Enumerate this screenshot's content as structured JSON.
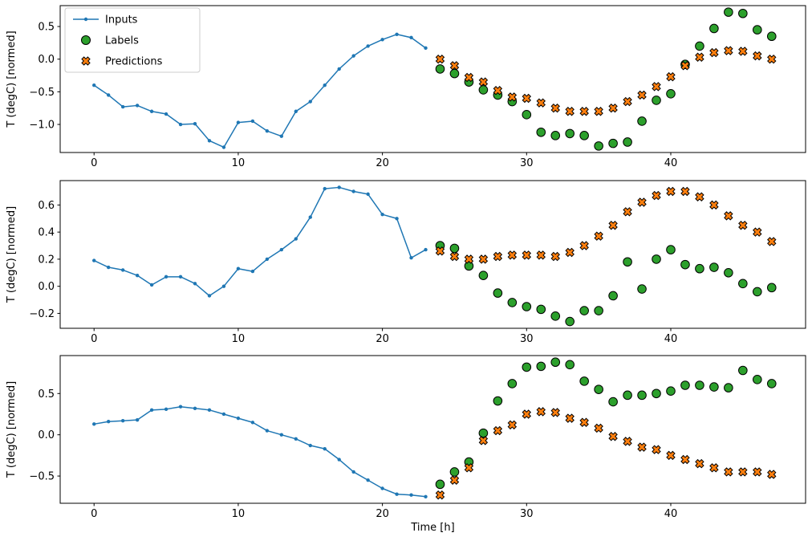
{
  "figure": {
    "background": "#ffffff",
    "axis_color": "#000000",
    "xlabel": "Time [h]",
    "ylabel": "T (degC) [normed]",
    "legend": {
      "position": "upper left",
      "border_color": "#cccccc",
      "entries": [
        {
          "label": "Inputs",
          "marker": "line-dot",
          "color": "#1f77b4"
        },
        {
          "label": "Labels",
          "marker": "circle",
          "color": "#2ca02c"
        },
        {
          "label": "Predictions",
          "marker": "x",
          "color": "#ff7f0e"
        }
      ]
    }
  },
  "chart_data": [
    {
      "type": "line",
      "title": "",
      "xlabel": "",
      "ylabel": "T (degC) [normed]",
      "xlim": [
        -2.35,
        49.35
      ],
      "ylim": [
        -1.43,
        0.82
      ],
      "xticks": [
        0,
        10,
        20,
        30,
        40
      ],
      "yticks": [
        0.5,
        0.0,
        -0.5,
        -1.0
      ],
      "grid": false,
      "series": [
        {
          "name": "Inputs",
          "type": "line+marker",
          "color": "#1f77b4",
          "x": [
            0,
            1,
            2,
            3,
            4,
            5,
            6,
            7,
            8,
            9,
            10,
            11,
            12,
            13,
            14,
            15,
            16,
            17,
            18,
            19,
            20,
            21,
            22,
            23
          ],
          "y": [
            -0.4,
            -0.55,
            -0.73,
            -0.71,
            -0.8,
            -0.84,
            -1.0,
            -0.99,
            -1.25,
            -1.35,
            -0.97,
            -0.95,
            -1.1,
            -1.18,
            -0.8,
            -0.65,
            -0.4,
            -0.15,
            0.05,
            0.2,
            0.3,
            0.38,
            0.33,
            0.17
          ]
        },
        {
          "name": "Labels",
          "type": "scatter",
          "marker": "circle",
          "color": "#2ca02c",
          "x": [
            24,
            25,
            26,
            27,
            28,
            29,
            30,
            31,
            32,
            33,
            34,
            35,
            36,
            37,
            38,
            39,
            40,
            41,
            42,
            43,
            44,
            45,
            46,
            47
          ],
          "y": [
            -0.15,
            -0.22,
            -0.35,
            -0.47,
            -0.55,
            -0.65,
            -0.85,
            -1.12,
            -1.17,
            -1.14,
            -1.17,
            -1.33,
            -1.29,
            -1.27,
            -0.95,
            -0.63,
            -0.53,
            -0.08,
            0.2,
            0.47,
            0.72,
            0.7,
            0.45,
            0.35
          ]
        },
        {
          "name": "Predictions",
          "type": "scatter",
          "marker": "x",
          "color": "#ff7f0e",
          "x": [
            24,
            25,
            26,
            27,
            28,
            29,
            30,
            31,
            32,
            33,
            34,
            35,
            36,
            37,
            38,
            39,
            40,
            41,
            42,
            43,
            44,
            45,
            46,
            47
          ],
          "y": [
            0.0,
            -0.1,
            -0.28,
            -0.35,
            -0.48,
            -0.58,
            -0.6,
            -0.67,
            -0.75,
            -0.8,
            -0.8,
            -0.8,
            -0.75,
            -0.65,
            -0.55,
            -0.42,
            -0.27,
            -0.1,
            0.03,
            0.1,
            0.13,
            0.12,
            0.05,
            0.0
          ]
        }
      ]
    },
    {
      "type": "line",
      "title": "",
      "xlabel": "",
      "ylabel": "T (degC) [normed]",
      "xlim": [
        -2.35,
        49.35
      ],
      "ylim": [
        -0.31,
        0.78
      ],
      "xticks": [
        0,
        10,
        20,
        30,
        40
      ],
      "yticks": [
        0.6,
        0.4,
        0.2,
        0.0,
        -0.2
      ],
      "grid": false,
      "series": [
        {
          "name": "Inputs",
          "type": "line+marker",
          "color": "#1f77b4",
          "x": [
            0,
            1,
            2,
            3,
            4,
            5,
            6,
            7,
            8,
            9,
            10,
            11,
            12,
            13,
            14,
            15,
            16,
            17,
            18,
            19,
            20,
            21,
            22,
            23
          ],
          "y": [
            0.19,
            0.14,
            0.12,
            0.08,
            0.01,
            0.07,
            0.07,
            0.02,
            -0.07,
            0.0,
            0.13,
            0.11,
            0.2,
            0.27,
            0.35,
            0.51,
            0.72,
            0.73,
            0.7,
            0.68,
            0.53,
            0.5,
            0.21,
            0.27
          ]
        },
        {
          "name": "Labels",
          "type": "scatter",
          "marker": "circle",
          "color": "#2ca02c",
          "x": [
            24,
            25,
            26,
            27,
            28,
            29,
            30,
            31,
            32,
            33,
            34,
            35,
            36,
            37,
            38,
            39,
            40,
            41,
            42,
            43,
            44,
            45,
            46,
            47
          ],
          "y": [
            0.3,
            0.28,
            0.15,
            0.08,
            -0.05,
            -0.12,
            -0.15,
            -0.17,
            -0.22,
            -0.26,
            -0.18,
            -0.18,
            -0.07,
            0.18,
            -0.02,
            0.2,
            0.27,
            0.16,
            0.13,
            0.14,
            0.1,
            0.02,
            -0.04,
            -0.01
          ]
        },
        {
          "name": "Predictions",
          "type": "scatter",
          "marker": "x",
          "color": "#ff7f0e",
          "x": [
            24,
            25,
            26,
            27,
            28,
            29,
            30,
            31,
            32,
            33,
            34,
            35,
            36,
            37,
            38,
            39,
            40,
            41,
            42,
            43,
            44,
            45,
            46,
            47
          ],
          "y": [
            0.26,
            0.22,
            0.2,
            0.2,
            0.22,
            0.23,
            0.23,
            0.23,
            0.22,
            0.25,
            0.3,
            0.37,
            0.45,
            0.55,
            0.62,
            0.67,
            0.7,
            0.7,
            0.66,
            0.6,
            0.52,
            0.45,
            0.4,
            0.33
          ]
        }
      ]
    },
    {
      "type": "line",
      "title": "",
      "xlabel": "Time [h]",
      "ylabel": "T (degC) [normed]",
      "xlim": [
        -2.35,
        49.35
      ],
      "ylim": [
        -0.83,
        0.96
      ],
      "xticks": [
        0,
        10,
        20,
        30,
        40
      ],
      "yticks": [
        0.5,
        0.0,
        -0.5
      ],
      "grid": false,
      "series": [
        {
          "name": "Inputs",
          "type": "line+marker",
          "color": "#1f77b4",
          "x": [
            0,
            1,
            2,
            3,
            4,
            5,
            6,
            7,
            8,
            9,
            10,
            11,
            12,
            13,
            14,
            15,
            16,
            17,
            18,
            19,
            20,
            21,
            22,
            23
          ],
          "y": [
            0.13,
            0.16,
            0.17,
            0.18,
            0.3,
            0.31,
            0.34,
            0.32,
            0.3,
            0.25,
            0.2,
            0.15,
            0.05,
            0.0,
            -0.05,
            -0.13,
            -0.17,
            -0.3,
            -0.45,
            -0.55,
            -0.65,
            -0.72,
            -0.73,
            -0.75
          ]
        },
        {
          "name": "Labels",
          "type": "scatter",
          "marker": "circle",
          "color": "#2ca02c",
          "x": [
            24,
            25,
            26,
            27,
            28,
            29,
            30,
            31,
            32,
            33,
            34,
            35,
            36,
            37,
            38,
            39,
            40,
            41,
            42,
            43,
            44,
            45,
            46,
            47
          ],
          "y": [
            -0.6,
            -0.45,
            -0.33,
            0.02,
            0.41,
            0.62,
            0.82,
            0.83,
            0.88,
            0.85,
            0.65,
            0.55,
            0.4,
            0.48,
            0.48,
            0.5,
            0.53,
            0.6,
            0.6,
            0.58,
            0.57,
            0.78,
            0.67,
            0.62
          ]
        },
        {
          "name": "Predictions",
          "type": "scatter",
          "marker": "x",
          "color": "#ff7f0e",
          "x": [
            24,
            25,
            26,
            27,
            28,
            29,
            30,
            31,
            32,
            33,
            34,
            35,
            36,
            37,
            38,
            39,
            40,
            41,
            42,
            43,
            44,
            45,
            46,
            47
          ],
          "y": [
            -0.73,
            -0.55,
            -0.4,
            -0.07,
            0.05,
            0.12,
            0.25,
            0.28,
            0.27,
            0.2,
            0.15,
            0.08,
            -0.02,
            -0.08,
            -0.15,
            -0.18,
            -0.25,
            -0.3,
            -0.35,
            -0.4,
            -0.45,
            -0.45,
            -0.45,
            -0.48
          ]
        }
      ]
    }
  ]
}
